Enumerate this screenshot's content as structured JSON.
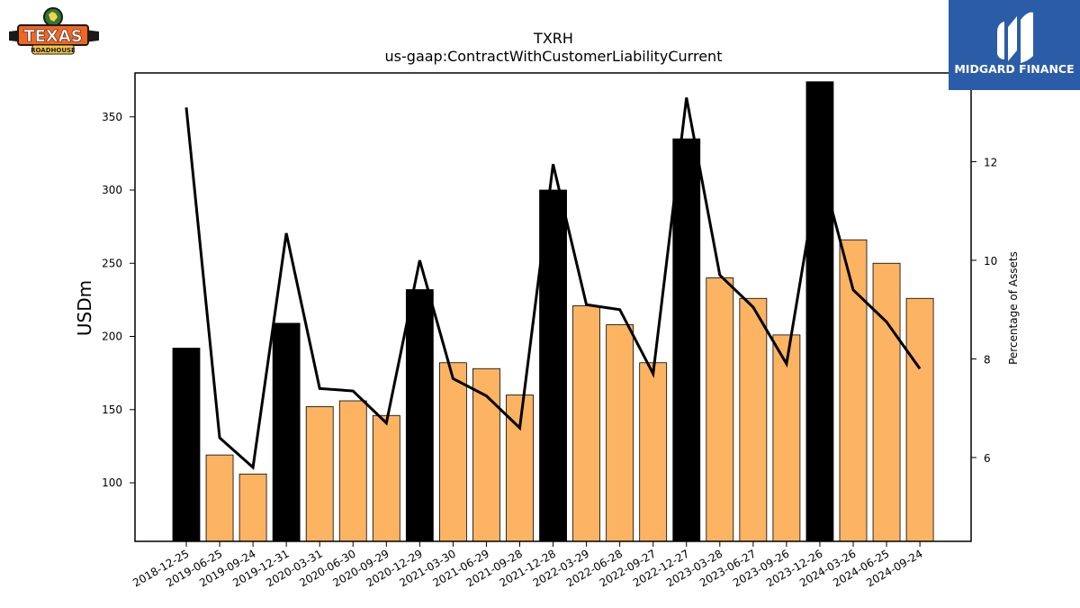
{
  "brand": {
    "left_logo_text": "TEXAS",
    "left_logo_subtext": "ROADHOUSE",
    "right_logo_text": "MIDGARD FINANCE",
    "right_logo_bg": "#2b5ca8"
  },
  "chart_data": {
    "type": "bar",
    "title": "TXRH",
    "subtitle": "us-gaap:ContractWithCustomerLiabilityCurrent",
    "ylabel": "USDm",
    "y2label": "Percentage of Assets",
    "ylim": [
      60,
      380
    ],
    "y2lim": [
      4.3,
      13.8
    ],
    "yticks": [
      100,
      150,
      200,
      250,
      300,
      350
    ],
    "y2ticks": [
      6,
      8,
      10,
      12
    ],
    "categories": [
      "2018-12-25",
      "2019-06-25",
      "2019-09-24",
      "2019-12-31",
      "2020-03-31",
      "2020-06-30",
      "2020-09-29",
      "2020-12-29",
      "2021-03-30",
      "2021-06-29",
      "2021-09-28",
      "2021-12-28",
      "2022-03-29",
      "2022-06-28",
      "2022-09-27",
      "2022-12-27",
      "2023-03-28",
      "2023-06-27",
      "2023-09-26",
      "2023-12-26",
      "2024-03-26",
      "2024-06-25",
      "2024-09-24"
    ],
    "series": [
      {
        "type": "bar",
        "values": [
          192,
          119,
          106,
          209,
          152,
          156,
          146,
          232,
          182,
          178,
          160,
          300,
          221,
          208,
          182,
          335,
          240,
          226,
          201,
          374,
          266,
          250,
          226
        ],
        "year_end": [
          true,
          false,
          false,
          true,
          false,
          false,
          false,
          true,
          false,
          false,
          false,
          true,
          false,
          false,
          false,
          true,
          false,
          false,
          false,
          true,
          false,
          false,
          false
        ]
      },
      {
        "type": "line",
        "axis": "right",
        "values": [
          13.1,
          6.4,
          5.8,
          10.55,
          7.4,
          7.35,
          6.7,
          10.0,
          7.6,
          7.25,
          6.6,
          11.95,
          9.1,
          9.0,
          7.7,
          13.3,
          9.7,
          9.05,
          7.9,
          11.95,
          9.4,
          8.75,
          7.8
        ]
      }
    ],
    "colors": {
      "year_end_bar": "#000000",
      "quarter_bar": "#fdb462",
      "line": "#000000"
    }
  }
}
